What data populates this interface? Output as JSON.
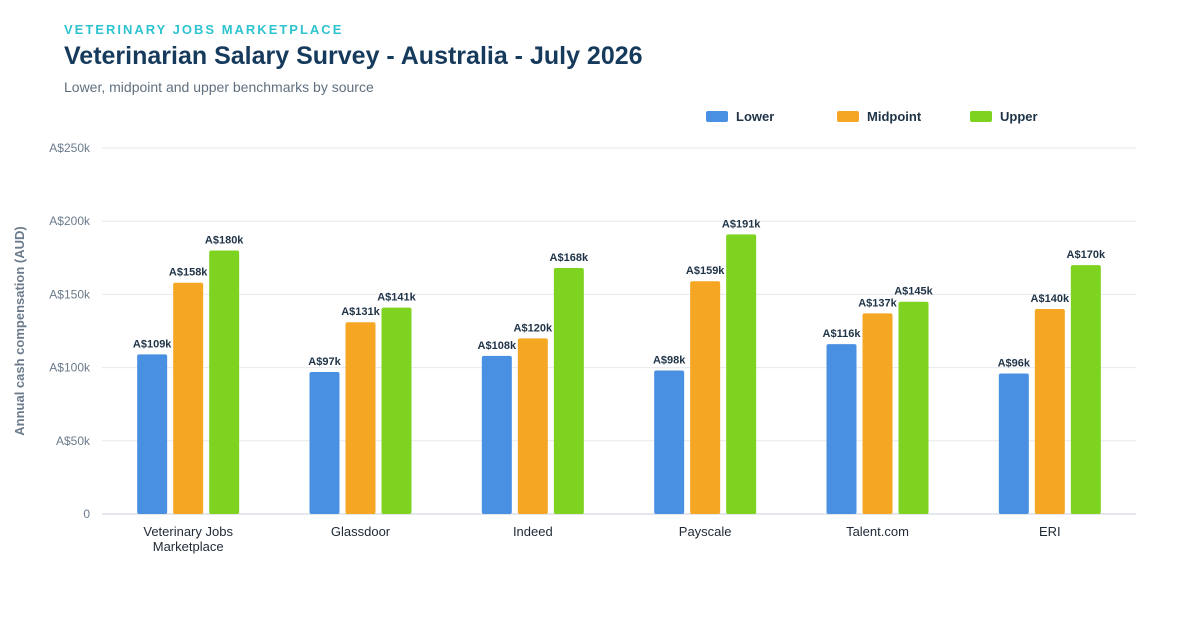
{
  "header": {
    "eyebrow": "VETERINARY JOBS MARKETPLACE",
    "title": "Veterinarian Salary Survey - Australia - July 2026",
    "subtitle": "Lower, midpoint and upper benchmarks by source"
  },
  "colors": {
    "lower": "#4a90e2",
    "midpoint": "#f5a623",
    "upper": "#7ed321",
    "grid": "#e6e9ee",
    "axis_text": "#6b7b8c",
    "label_text": "#1f3347"
  },
  "chart_data": {
    "type": "bar",
    "categories": [
      "Veterinary Jobs Marketplace",
      "Glassdoor",
      "Indeed",
      "Payscale",
      "Talent.com",
      "ERI"
    ],
    "series": [
      {
        "name": "Lower",
        "color": "#4a90e2",
        "values": [
          109,
          97,
          108,
          98,
          116,
          96
        ],
        "labels": [
          "A$109k",
          "A$97k",
          "A$108k",
          "A$98k",
          "A$116k",
          "A$96k"
        ]
      },
      {
        "name": "Midpoint",
        "color": "#f5a623",
        "values": [
          158,
          131,
          120,
          159,
          137,
          140
        ],
        "labels": [
          "A$158k",
          "A$131k",
          "A$120k",
          "A$159k",
          "A$137k",
          "A$140k"
        ]
      },
      {
        "name": "Upper",
        "color": "#7ed321",
        "values": [
          180,
          141,
          168,
          191,
          145,
          170
        ],
        "labels": [
          "A$180k",
          "A$141k",
          "A$168k",
          "A$191k",
          "A$145k",
          "A$170k"
        ]
      }
    ],
    "ylabel": "Annual cash compensation (AUD)",
    "ylim": [
      0,
      250
    ],
    "yticks": [
      0,
      50,
      100,
      150,
      200,
      250
    ],
    "ytick_labels": [
      "0",
      "A$50k",
      "A$100k",
      "A$150k",
      "A$200k",
      "A$250k"
    ],
    "grid": true,
    "legend_position": "top-right"
  }
}
